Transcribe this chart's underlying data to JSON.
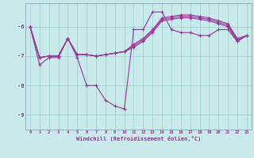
{
  "xlabel": "Windchill (Refroidissement éolien,°C)",
  "background_color": "#c8eaea",
  "line_color": "#993399",
  "grid_color": "#99cccc",
  "xlim": [
    -0.5,
    23.5
  ],
  "ylim": [
    -9.5,
    -5.2
  ],
  "yticks": [
    -9,
    -8,
    -7,
    -6
  ],
  "xticks": [
    0,
    1,
    2,
    3,
    4,
    5,
    6,
    7,
    8,
    9,
    10,
    11,
    12,
    13,
    14,
    15,
    16,
    17,
    18,
    19,
    20,
    21,
    22,
    23
  ],
  "line1_x": [
    0,
    1,
    2,
    3,
    4,
    5,
    6,
    7,
    8,
    9,
    10,
    11,
    12,
    13,
    14,
    15,
    16,
    17,
    18,
    19,
    20,
    21,
    22,
    23
  ],
  "line1_y": [
    -6.0,
    -7.3,
    -7.05,
    -7.05,
    -6.4,
    -7.05,
    -8.0,
    -8.0,
    -8.5,
    -8.7,
    -8.8,
    -6.1,
    -6.1,
    -5.5,
    -5.5,
    -6.1,
    -6.2,
    -6.2,
    -6.3,
    -6.3,
    -6.1,
    -6.1,
    -6.5,
    -6.3
  ],
  "line2_x": [
    0,
    1,
    2,
    3,
    4,
    5,
    6,
    7,
    8,
    9,
    10,
    11,
    12,
    13,
    14,
    15,
    16,
    17,
    18,
    19,
    20,
    21,
    22,
    23
  ],
  "line2_y": [
    -6.0,
    -7.05,
    -7.0,
    -7.0,
    -6.4,
    -6.95,
    -6.95,
    -7.0,
    -6.95,
    -6.9,
    -6.85,
    -6.6,
    -6.4,
    -6.1,
    -5.7,
    -5.65,
    -5.6,
    -5.6,
    -5.65,
    -5.7,
    -5.8,
    -5.9,
    -6.4,
    -6.3
  ],
  "line3_x": [
    0,
    1,
    2,
    3,
    4,
    5,
    6,
    7,
    8,
    9,
    10,
    11,
    12,
    13,
    14,
    15,
    16,
    17,
    18,
    19,
    20,
    21,
    22,
    23
  ],
  "line3_y": [
    -6.0,
    -7.05,
    -7.0,
    -7.0,
    -6.4,
    -6.95,
    -6.95,
    -7.0,
    -6.95,
    -6.9,
    -6.85,
    -6.65,
    -6.45,
    -6.15,
    -5.75,
    -5.7,
    -5.65,
    -5.65,
    -5.7,
    -5.75,
    -5.85,
    -5.95,
    -6.45,
    -6.3
  ],
  "line4_x": [
    0,
    1,
    2,
    3,
    4,
    5,
    6,
    7,
    8,
    9,
    10,
    11,
    12,
    13,
    14,
    15,
    16,
    17,
    18,
    19,
    20,
    21,
    22,
    23
  ],
  "line4_y": [
    -6.0,
    -7.05,
    -7.0,
    -7.0,
    -6.4,
    -6.95,
    -6.95,
    -7.0,
    -6.95,
    -6.9,
    -6.85,
    -6.7,
    -6.5,
    -6.2,
    -5.8,
    -5.75,
    -5.7,
    -5.7,
    -5.75,
    -5.8,
    -5.9,
    -6.0,
    -6.5,
    -6.3
  ]
}
